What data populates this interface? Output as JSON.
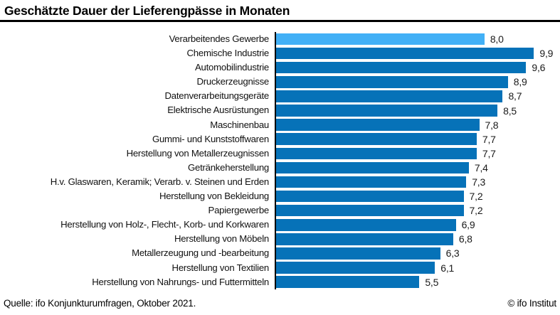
{
  "title": "Geschätzte Dauer der Lieferengpässe in Monaten",
  "footer": {
    "source": "Quelle: ifo Konjunkturumfragen, Oktober 2021.",
    "copyright": "© ifo Institut"
  },
  "colors": {
    "bar_default": "#0672b8",
    "bar_highlight": "#42b0f6",
    "axis": "#000000",
    "title_rule": "#000000"
  },
  "chart_data": {
    "type": "bar",
    "orientation": "horizontal",
    "title": "Geschätzte Dauer der Lieferengpässe in Monaten",
    "unit": "Monate",
    "grid": false,
    "legend": false,
    "xlim": [
      0,
      10.9
    ],
    "highlight_index": 0,
    "highlighted_category": "Verarbeitendes Gewerbe",
    "categories": [
      "Verarbeitendes Gewerbe",
      "Chemische Industrie",
      "Automobilindustrie",
      "Druckerzeugnisse",
      "Datenverarbeitungsgeräte",
      "Elektrische Ausrüstungen",
      "Maschinenbau",
      "Gummi- und Kunststoffwaren",
      "Herstellung von Metallerzeugnissen",
      "Getränkeherstellung",
      "H.v. Glaswaren, Keramik; Verarb. v. Steinen und Erden",
      "Herstellung von Bekleidung",
      "Papiergewerbe",
      "Herstellung von Holz-, Flecht-, Korb- und Korkwaren",
      "Herstellung von Möbeln",
      "Metallerzeugung und -bearbeitung",
      "Herstellung von Textilien",
      "Herstellung von Nahrungs- und Futtermitteln"
    ],
    "values": [
      8.0,
      9.9,
      9.6,
      8.9,
      8.7,
      8.5,
      7.8,
      7.7,
      7.7,
      7.4,
      7.3,
      7.2,
      7.2,
      6.9,
      6.8,
      6.3,
      6.1,
      5.5
    ],
    "value_labels": [
      "8,0",
      "9,9",
      "9,6",
      "8,9",
      "8,7",
      "8,5",
      "7,8",
      "7,7",
      "7,7",
      "7,4",
      "7,3",
      "7,2",
      "7,2",
      "6,9",
      "6,8",
      "6,3",
      "6,1",
      "5,5"
    ]
  }
}
